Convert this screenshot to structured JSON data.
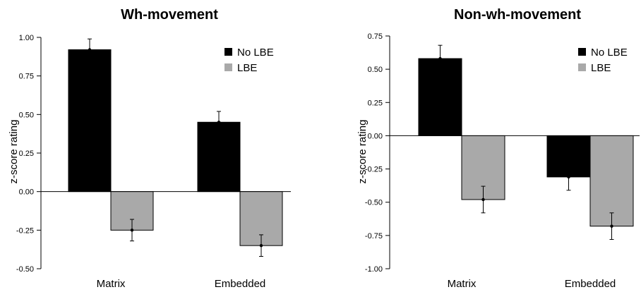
{
  "chart_data": [
    {
      "type": "bar",
      "title": "Wh-movement",
      "ylabel": "z-score rating",
      "xlabel": "",
      "categories": [
        "Matrix",
        "Embedded"
      ],
      "ylim": [
        -0.5,
        1.0
      ],
      "yticks": [
        "-0.50",
        "-0.25",
        "0.00",
        "0.25",
        "0.50",
        "0.75",
        "1.00"
      ],
      "yticks_values": [
        -0.5,
        -0.25,
        0,
        0.25,
        0.5,
        0.75,
        1.0
      ],
      "legend_position": "top-right",
      "series": [
        {
          "name": "No LBE",
          "color": "#000000",
          "values": [
            0.92,
            0.45
          ],
          "err_low": [
            0.92,
            0.45
          ],
          "err_high": [
            0.99,
            0.52
          ]
        },
        {
          "name": "LBE",
          "color": "#a9a9a9",
          "values": [
            -0.25,
            -0.35
          ],
          "err_low": [
            -0.32,
            -0.42
          ],
          "err_high": [
            -0.18,
            -0.28
          ]
        }
      ]
    },
    {
      "type": "bar",
      "title": "Non-wh-movement",
      "ylabel": "z-score rating",
      "xlabel": "",
      "categories": [
        "Matrix",
        "Embedded"
      ],
      "ylim": [
        -1.0,
        0.75
      ],
      "yticks": [
        "-1.00",
        "-0.75",
        "-0.50",
        "-0.25",
        "0.00",
        "0.25",
        "0.50",
        "0.75"
      ],
      "yticks_values": [
        -1.0,
        -0.75,
        -0.5,
        -0.25,
        0,
        0.25,
        0.5,
        0.75
      ],
      "legend_position": "top-right",
      "series": [
        {
          "name": "No LBE",
          "color": "#000000",
          "values": [
            0.58,
            -0.31
          ],
          "err_low": [
            0.58,
            -0.41
          ],
          "err_high": [
            0.68,
            -0.31
          ]
        },
        {
          "name": "LBE",
          "color": "#a9a9a9",
          "values": [
            -0.48,
            -0.68
          ],
          "err_low": [
            -0.58,
            -0.78
          ],
          "err_high": [
            -0.38,
            -0.58
          ]
        }
      ]
    }
  ]
}
